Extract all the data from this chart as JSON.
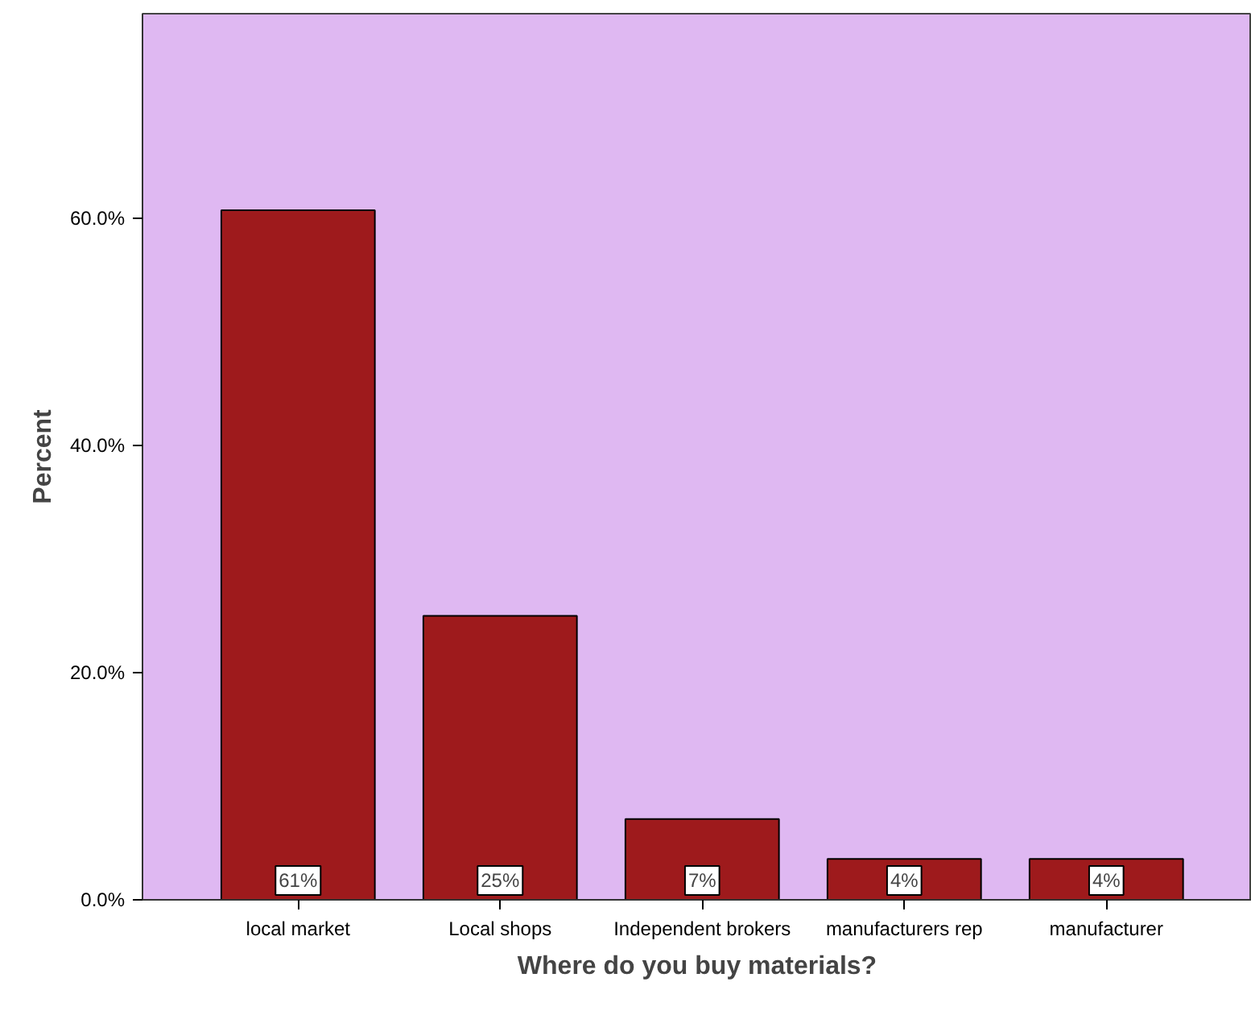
{
  "chart_data": {
    "type": "bar",
    "xlabel": "Where do you buy materials?",
    "ylabel": "Percent",
    "categories": [
      "local market",
      "Local shops",
      "Independent brokers",
      "manufacturers rep",
      "manufacturer"
    ],
    "values": [
      60.7,
      25.0,
      7.1,
      3.6,
      3.6
    ],
    "value_labels": [
      "61%",
      "25%",
      "7%",
      "4%",
      "4%"
    ],
    "color": "#9e1a1c",
    "ylim": [
      0,
      78
    ],
    "yticks": [
      {
        "value": 0,
        "label": "0.0%"
      },
      {
        "value": 20,
        "label": "20.0%"
      },
      {
        "value": 40,
        "label": "40.0%"
      },
      {
        "value": 60,
        "label": "60.0%"
      }
    ],
    "grid": false
  }
}
